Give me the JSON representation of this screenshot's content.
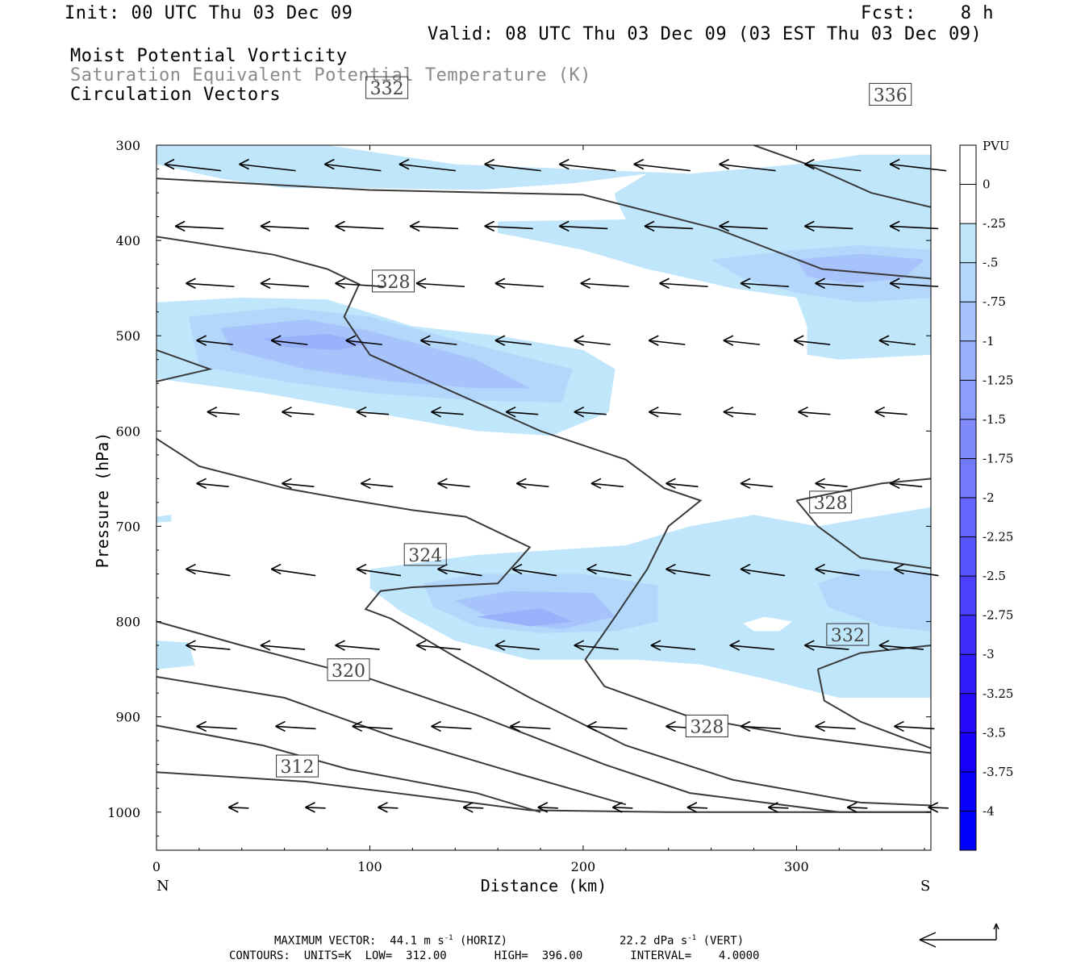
{
  "header": {
    "init": "Init: 00 UTC Thu 03 Dec 09",
    "fcst": "Fcst:    8 h",
    "valid": "Valid: 08 UTC Thu 03 Dec 09 (03 EST Thu 03 Dec 09)",
    "field1": "Moist Potential Vorticity",
    "field2": "Saturation Equivalent Potential Temperature (K)",
    "field3": "Circulation Vectors"
  },
  "footer": {
    "max_vector": "MAXIMUM VECTOR:  44.1 m s",
    "max_vector_sup": "-1",
    "max_vector_horiz": " (HORIZ)",
    "max_vector_vert": "22.2 dPa s",
    "max_vector_vert_sup": "-1",
    "max_vector_vert_tail": " (VERT)",
    "contours": "CONTOURS:  UNITS=K  LOW=  312.00       HIGH=  396.00       INTERVAL=    4.0000"
  },
  "chart_data": {
    "type": "cross-section",
    "xlabel": "Distance (km)",
    "ylabel": "Pressure (hPa)",
    "xlim": [
      0,
      363
    ],
    "ylim": [
      1040,
      300
    ],
    "x_ticks": [
      0,
      100,
      200,
      300
    ],
    "y_ticks": [
      300,
      400,
      500,
      600,
      700,
      800,
      900,
      1000
    ],
    "x_end_labels": {
      "left": "N",
      "right": "S"
    },
    "colorbar": {
      "unit": "PVU",
      "levels": [
        "0",
        "-.25",
        "-.5",
        "-.75",
        "-1",
        "-1.25",
        "-1.5",
        "-1.75",
        "-2",
        "-2.25",
        "-2.5",
        "-2.75",
        "-3",
        "-3.25",
        "-3.5",
        "-3.75",
        "-4"
      ],
      "colors": [
        "#ffffff",
        "#ffffff",
        "#bfe6fb",
        "#b3d6fb",
        "#a6c3fb",
        "#99b0fb",
        "#8c9efb",
        "#7f8bfb",
        "#7279fb",
        "#6566fb",
        "#5854fb",
        "#4b41fb",
        "#3e2efb",
        "#311cfb",
        "#2409fb",
        "#1700fb",
        "#0a00fb",
        "#0000ff"
      ]
    },
    "pv_regions": [
      {
        "level": "-.25",
        "points": [
          [
            0,
            300
          ],
          [
            80,
            300
          ],
          [
            140,
            320
          ],
          [
            250,
            330
          ],
          [
            300,
            320
          ],
          [
            330,
            310
          ],
          [
            363,
            310
          ],
          [
            363,
            385
          ],
          [
            340,
            380
          ],
          [
            300,
            380
          ],
          [
            260,
            385
          ],
          [
            220,
            378
          ],
          [
            215,
            355
          ],
          [
            215,
            350
          ],
          [
            230,
            330
          ],
          [
            195,
            340
          ],
          [
            150,
            347
          ],
          [
            100,
            345
          ],
          [
            60,
            345
          ],
          [
            30,
            335
          ],
          [
            0,
            320
          ]
        ]
      },
      {
        "level": "-.25",
        "points": [
          [
            160,
            380
          ],
          [
            220,
            378
          ],
          [
            260,
            385
          ],
          [
            300,
            380
          ],
          [
            363,
            380
          ],
          [
            363,
            520
          ],
          [
            320,
            525
          ],
          [
            305,
            520
          ],
          [
            305,
            490
          ],
          [
            300,
            460
          ],
          [
            270,
            450
          ],
          [
            230,
            430
          ],
          [
            200,
            410
          ],
          [
            160,
            392
          ]
        ]
      },
      {
        "level": "-.5",
        "points": [
          [
            260,
            420
          ],
          [
            300,
            410
          ],
          [
            330,
            405
          ],
          [
            363,
            410
          ],
          [
            363,
            460
          ],
          [
            330,
            465
          ],
          [
            300,
            455
          ],
          [
            275,
            440
          ]
        ]
      },
      {
        "level": "-.75",
        "points": [
          [
            300,
            420
          ],
          [
            330,
            414
          ],
          [
            360,
            420
          ],
          [
            350,
            440
          ],
          [
            325,
            445
          ],
          [
            305,
            438
          ]
        ]
      },
      {
        "level": "-.25",
        "points": [
          [
            0,
            465
          ],
          [
            40,
            460
          ],
          [
            80,
            462
          ],
          [
            120,
            490
          ],
          [
            160,
            500
          ],
          [
            200,
            515
          ],
          [
            215,
            535
          ],
          [
            212,
            580
          ],
          [
            185,
            605
          ],
          [
            150,
            600
          ],
          [
            100,
            580
          ],
          [
            50,
            560
          ],
          [
            10,
            548
          ],
          [
            0,
            545
          ]
        ]
      },
      {
        "level": "-.5",
        "points": [
          [
            15,
            480
          ],
          [
            60,
            470
          ],
          [
            100,
            480
          ],
          [
            150,
            510
          ],
          [
            195,
            535
          ],
          [
            190,
            570
          ],
          [
            150,
            568
          ],
          [
            100,
            560
          ],
          [
            60,
            548
          ],
          [
            20,
            532
          ]
        ]
      },
      {
        "level": "-.75",
        "points": [
          [
            30,
            492
          ],
          [
            70,
            483
          ],
          [
            100,
            495
          ],
          [
            150,
            525
          ],
          [
            175,
            555
          ],
          [
            150,
            555
          ],
          [
            110,
            548
          ],
          [
            70,
            535
          ],
          [
            35,
            515
          ]
        ]
      },
      {
        "level": "-1",
        "points": [
          [
            50,
            503
          ],
          [
            80,
            498
          ],
          [
            100,
            508
          ],
          [
            85,
            515
          ],
          [
            60,
            512
          ]
        ]
      },
      {
        "level": "-.25",
        "points": [
          [
            100,
            745
          ],
          [
            150,
            730
          ],
          [
            220,
            720
          ],
          [
            250,
            700
          ],
          [
            280,
            688
          ],
          [
            310,
            700
          ],
          [
            363,
            680
          ],
          [
            363,
            880
          ],
          [
            320,
            880
          ],
          [
            285,
            860
          ],
          [
            255,
            845
          ],
          [
            225,
            840
          ],
          [
            200,
            840
          ],
          [
            175,
            840
          ],
          [
            140,
            820
          ],
          [
            115,
            790
          ],
          [
            100,
            765
          ]
        ]
      },
      {
        "level": "-.5",
        "points": [
          [
            125,
            760
          ],
          [
            150,
            750
          ],
          [
            200,
            750
          ],
          [
            235,
            762
          ],
          [
            235,
            800
          ],
          [
            215,
            810
          ],
          [
            180,
            812
          ],
          [
            150,
            805
          ],
          [
            130,
            785
          ]
        ]
      },
      {
        "level": "-.75",
        "points": [
          [
            140,
            778
          ],
          [
            165,
            768
          ],
          [
            205,
            770
          ],
          [
            215,
            795
          ],
          [
            190,
            808
          ],
          [
            160,
            800
          ]
        ]
      },
      {
        "level": "-1",
        "points": [
          [
            150,
            795
          ],
          [
            180,
            786
          ],
          [
            195,
            800
          ],
          [
            175,
            805
          ]
        ]
      },
      {
        "level": "-.5",
        "points": [
          [
            310,
            760
          ],
          [
            330,
            745
          ],
          [
            363,
            750
          ],
          [
            363,
            810
          ],
          [
            340,
            805
          ],
          [
            315,
            785
          ]
        ]
      },
      {
        "level": "-.25",
        "points": [
          [
            0,
            820
          ],
          [
            15,
            822
          ],
          [
            18,
            846
          ],
          [
            0,
            850
          ]
        ]
      },
      {
        "level": "-.25",
        "points": [
          [
            0,
            690
          ],
          [
            7,
            688
          ],
          [
            7,
            695
          ],
          [
            0,
            696
          ]
        ]
      }
    ],
    "pv_holes": [
      [
        [
          275,
          802
        ],
        [
          285,
          795
        ],
        [
          298,
          800
        ],
        [
          292,
          810
        ],
        [
          280,
          810
        ]
      ]
    ],
    "theta_contours": [
      {
        "label": "312",
        "label_at": [
          66,
          952
        ],
        "points": [
          [
            0,
            958
          ],
          [
            70,
            968
          ],
          [
            130,
            985
          ],
          [
            175,
            998
          ],
          [
            240,
            1000
          ],
          [
            363,
            1000
          ]
        ]
      },
      {
        "label": "",
        "label_at": null,
        "points": [
          [
            0,
            909
          ],
          [
            50,
            930
          ],
          [
            90,
            955
          ],
          [
            150,
            980
          ],
          [
            180,
            1000
          ]
        ]
      },
      {
        "label": "",
        "label_at": null,
        "points": [
          [
            0,
            858
          ],
          [
            60,
            880
          ],
          [
            110,
            920
          ],
          [
            170,
            960
          ],
          [
            220,
            992
          ]
        ]
      },
      {
        "label": "320",
        "label_at": [
          90,
          851
        ],
        "points": [
          [
            0,
            800
          ],
          [
            40,
            825
          ],
          [
            100,
            860
          ],
          [
            150,
            898
          ],
          [
            210,
            950
          ],
          [
            250,
            980
          ],
          [
            320,
            1000
          ],
          [
            363,
            1000
          ]
        ]
      },
      {
        "label": "324",
        "label_at": [
          126,
          730
        ],
        "points": [
          [
            0,
            608
          ],
          [
            20,
            637
          ],
          [
            60,
            660
          ],
          [
            90,
            672
          ],
          [
            120,
            683
          ],
          [
            145,
            690
          ],
          [
            175,
            722
          ],
          [
            160,
            760
          ],
          [
            120,
            764
          ],
          [
            105,
            768
          ],
          [
            98,
            787
          ],
          [
            110,
            797
          ],
          [
            140,
            837
          ],
          [
            175,
            880
          ],
          [
            220,
            930
          ],
          [
            270,
            966
          ],
          [
            330,
            990
          ],
          [
            363,
            993
          ]
        ]
      },
      {
        "label": "328",
        "label_at": [
          111,
          443
        ],
        "points": [
          [
            0,
            396
          ],
          [
            55,
            415
          ],
          [
            80,
            430
          ],
          [
            95,
            446
          ],
          [
            88,
            480
          ],
          [
            100,
            520
          ],
          [
            140,
            560
          ],
          [
            180,
            600
          ],
          [
            220,
            630
          ],
          [
            238,
            660
          ],
          [
            255,
            673
          ],
          [
            240,
            700
          ],
          [
            230,
            745
          ],
          [
            215,
            795
          ],
          [
            201,
            840
          ],
          [
            210,
            868
          ],
          [
            250,
            900
          ],
          [
            300,
            920
          ],
          [
            363,
            938
          ]
        ]
      },
      {
        "label": "328",
        "label_at": [
          258,
          910
        ],
        "points": []
      },
      {
        "label": "328",
        "label_at": [
          316,
          675
        ],
        "points": [
          [
            300,
            673
          ],
          [
            340,
            655
          ],
          [
            363,
            650
          ]
        ]
      },
      {
        "label": "",
        "label_at": null,
        "points": [
          [
            300,
            673
          ],
          [
            310,
            700
          ],
          [
            330,
            733
          ],
          [
            363,
            744
          ]
        ]
      },
      {
        "label": "332",
        "label_at": [
          108,
          240
        ],
        "points": [
          [
            0,
            335
          ],
          [
            100,
            347
          ],
          [
            200,
            352
          ],
          [
            263,
            388
          ],
          [
            312,
            430
          ],
          [
            363,
            440
          ]
        ]
      },
      {
        "label": "332",
        "label_at": [
          324,
          814
        ],
        "points": [
          [
            310,
            850
          ],
          [
            330,
            833
          ],
          [
            363,
            825
          ]
        ]
      },
      {
        "label": "",
        "label_at": null,
        "points": [
          [
            310,
            850
          ],
          [
            313,
            883
          ],
          [
            330,
            905
          ],
          [
            363,
            933
          ]
        ]
      },
      {
        "label": "336",
        "label_at": [
          344,
          247
        ],
        "points": [
          [
            280,
            300
          ],
          [
            305,
            320
          ],
          [
            335,
            350
          ],
          [
            363,
            365
          ]
        ]
      },
      {
        "label": "",
        "label_at": null,
        "points": [
          [
            0,
            515
          ],
          [
            25,
            535
          ],
          [
            0,
            548
          ]
        ]
      }
    ]
  }
}
